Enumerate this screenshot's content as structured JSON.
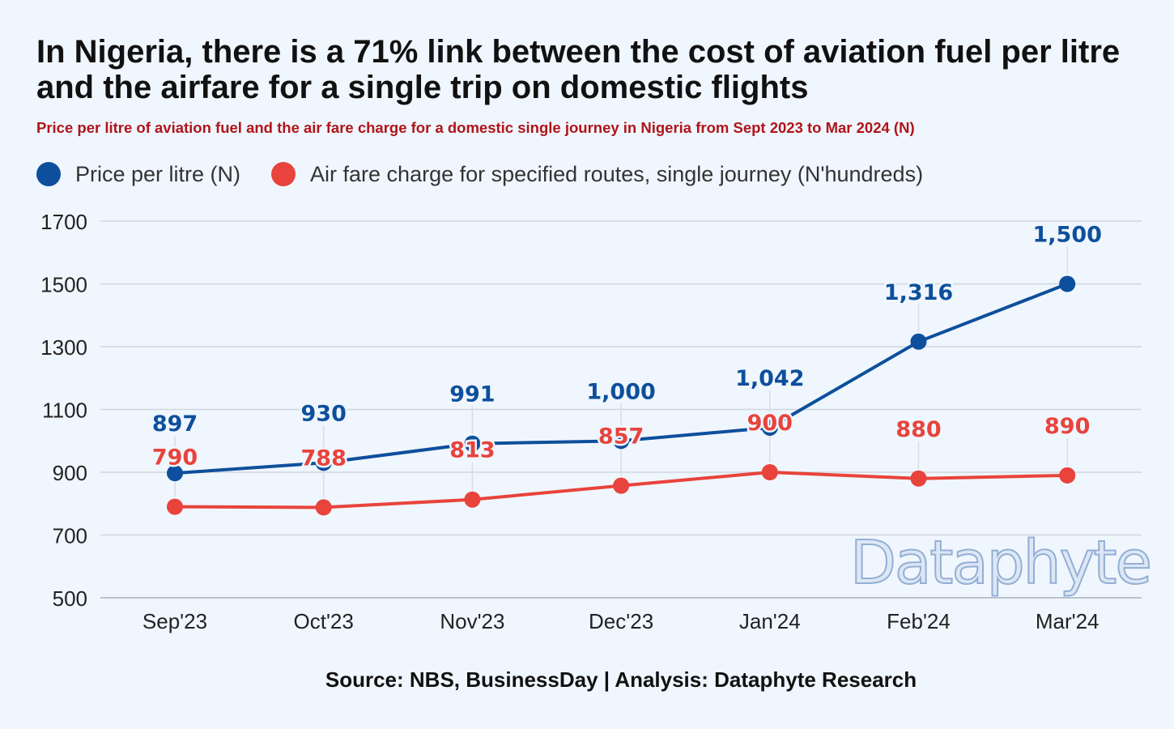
{
  "title": "In Nigeria, there is a 71% link between the cost of aviation fuel per litre and the airfare for a single trip on domestic flights",
  "subtitle": "Price per litre of aviation fuel and the air fare charge for a domestic single journey in Nigeria from Sept 2023 to Mar 2024 (N)",
  "source": "Source: NBS, BusinessDay | Analysis: Dataphyte Research",
  "watermark": "Dataphyte",
  "chart_data": {
    "type": "line",
    "categories": [
      "Sep'23",
      "Oct'23",
      "Nov'23",
      "Dec'23",
      "Jan'24",
      "Feb'24",
      "Mar'24"
    ],
    "ylim": [
      500,
      1700
    ],
    "yticks": [
      500,
      700,
      900,
      1100,
      1300,
      1500,
      1700
    ],
    "grid": true,
    "legend_position": "top-left",
    "series": [
      {
        "name": "Price per litre (N)",
        "color": "#0d4f9c",
        "values": [
          897,
          930,
          991,
          1000,
          1042,
          1316,
          1500
        ],
        "labels": [
          "897",
          "930",
          "991",
          "1,000",
          "1,042",
          "1,316",
          "1,500"
        ]
      },
      {
        "name": "Air fare charge for specified routes, single journey (N'hundreds)",
        "color": "#e8433c",
        "values": [
          790,
          788,
          813,
          857,
          900,
          880,
          890
        ],
        "labels": [
          "790",
          "788",
          "813",
          "857",
          "900",
          "880",
          "890"
        ]
      }
    ]
  }
}
